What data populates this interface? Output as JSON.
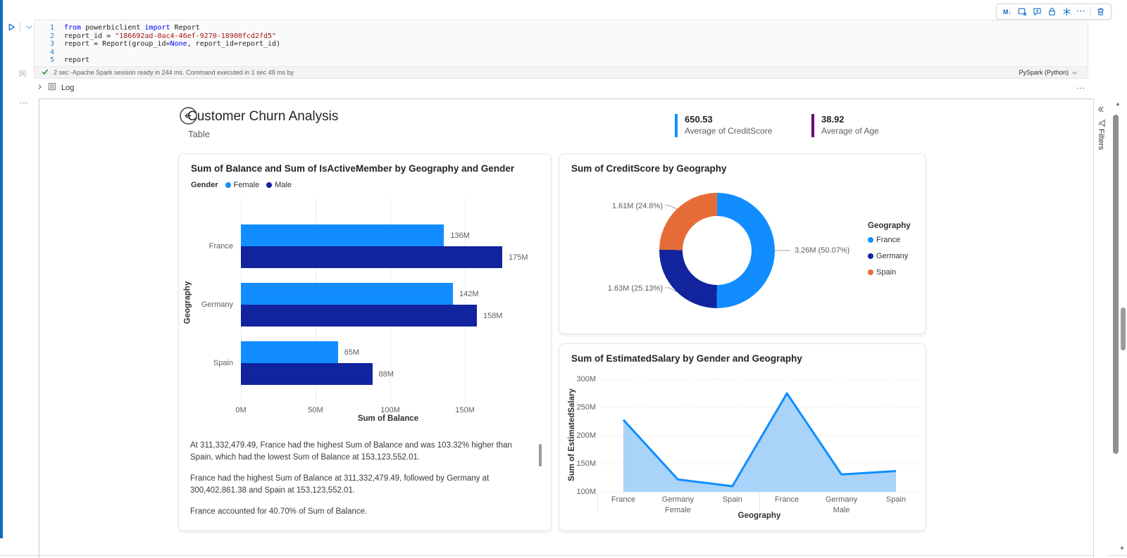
{
  "notebook": {
    "toolbar_icons": [
      "markdown-convert",
      "clear-output",
      "comment-add",
      "lock",
      "freeze",
      "more",
      "delete"
    ],
    "cell": {
      "execution_count": "[5]",
      "status_check": "check",
      "status": "2 sec -Apache Spark session ready in 244 ms. Command executed in 1 sec 49 ms by",
      "language": "PySpark (Python)",
      "code_lines": [
        {
          "num": "1",
          "parts": [
            [
              "from",
              "kw"
            ],
            [
              " powerbiclient ",
              "pl"
            ],
            [
              "import",
              "kw"
            ],
            [
              " Report",
              "pl"
            ]
          ]
        },
        {
          "num": "2",
          "parts": [
            [
              "report_id = ",
              "pl"
            ],
            [
              "\"186692ad-0ac4-46ef-9270-18900fcd2fd5\"",
              "str"
            ]
          ]
        },
        {
          "num": "3",
          "parts": [
            [
              "report = Report(group_id=",
              "pl"
            ],
            [
              "None",
              "kw"
            ],
            [
              ", report_id=report_id)",
              "pl"
            ]
          ]
        },
        {
          "num": "4",
          "parts": []
        },
        {
          "num": "5",
          "parts": [
            [
              "report",
              "pl"
            ]
          ]
        }
      ]
    },
    "log_label": "Log",
    "log_more": "...",
    "left_more": "..."
  },
  "report": {
    "title": "Customer Churn Analysis",
    "subtitle": "Table",
    "kpis": [
      {
        "value": "650.53",
        "label": "Average of CreditScore",
        "accent": "#118DFF"
      },
      {
        "value": "38.92",
        "label": "Average of Age",
        "accent": "#6B007B"
      }
    ],
    "filters_label": "Filters",
    "insights": [
      "At 311,332,479.49, France had the highest Sum of Balance and was 103.32% higher than Spain, which had the lowest Sum of Balance at 153,123,552.01.",
      "France had the highest Sum of Balance at 311,332,479.49, followed by Germany at 300,402,861.38 and Spain at 153,123,552.01.",
      "France accounted for 40.70% of Sum of Balance."
    ]
  },
  "chart_data": [
    {
      "type": "bar",
      "orientation": "horizontal",
      "title": "Sum of Balance and Sum of IsActiveMember by Geography and Gender",
      "legend_title": "Gender",
      "categories": [
        "France",
        "Germany",
        "Spain"
      ],
      "series": [
        {
          "name": "Female",
          "color": "#118DFF",
          "values": [
            136,
            142,
            65
          ],
          "labels": [
            "136M",
            "142M",
            "65M"
          ]
        },
        {
          "name": "Male",
          "color": "#12239E",
          "values": [
            175,
            158,
            88
          ],
          "labels": [
            "175M",
            "158M",
            "88M"
          ]
        }
      ],
      "xlabel": "Sum of Balance",
      "ylabel": "Geography",
      "xticks": [
        {
          "value": 0,
          "label": "0M"
        },
        {
          "value": 50,
          "label": "50M"
        },
        {
          "value": 100,
          "label": "100M"
        },
        {
          "value": 150,
          "label": "150M"
        }
      ],
      "xlim": [
        0,
        208
      ],
      "grid": true
    },
    {
      "type": "pie",
      "subtype": "donut",
      "title": "Sum of CreditScore by Geography",
      "legend_title": "Geography",
      "legend_position": "right",
      "slices": [
        {
          "name": "France",
          "value": 3.26,
          "pct": 50.07,
          "label": "3.26M (50.07%)",
          "color": "#118DFF"
        },
        {
          "name": "Germany",
          "value": 1.63,
          "pct": 25.13,
          "label": "1.63M (25.13%)",
          "color": "#12239E"
        },
        {
          "name": "Spain",
          "value": 1.61,
          "pct": 24.8,
          "label": "1.61M (24.8%)",
          "color": "#E66C37"
        }
      ]
    },
    {
      "type": "area",
      "title": "Sum of EstimatedSalary by Gender and Geography",
      "x": [
        "France",
        "Germany",
        "Spain",
        "France",
        "Germany",
        "Spain"
      ],
      "group_labels": [
        {
          "label": "Female",
          "center_index": 1
        },
        {
          "label": "Male",
          "center_index": 4
        }
      ],
      "values": [
        228,
        122,
        110,
        275,
        131,
        137
      ],
      "yticks": [
        {
          "value": 300,
          "label": "300M"
        },
        {
          "value": 250,
          "label": "250M"
        },
        {
          "value": 200,
          "label": "200M"
        },
        {
          "value": 150,
          "label": "150M"
        },
        {
          "value": 100,
          "label": "100M"
        }
      ],
      "ylim": [
        100,
        300
      ],
      "xlabel": "Geography",
      "ylabel": "Sum of EstimatedSalary",
      "line_color": "#118DFF",
      "fill_color": "#A9D3F9",
      "grid": true
    }
  ]
}
